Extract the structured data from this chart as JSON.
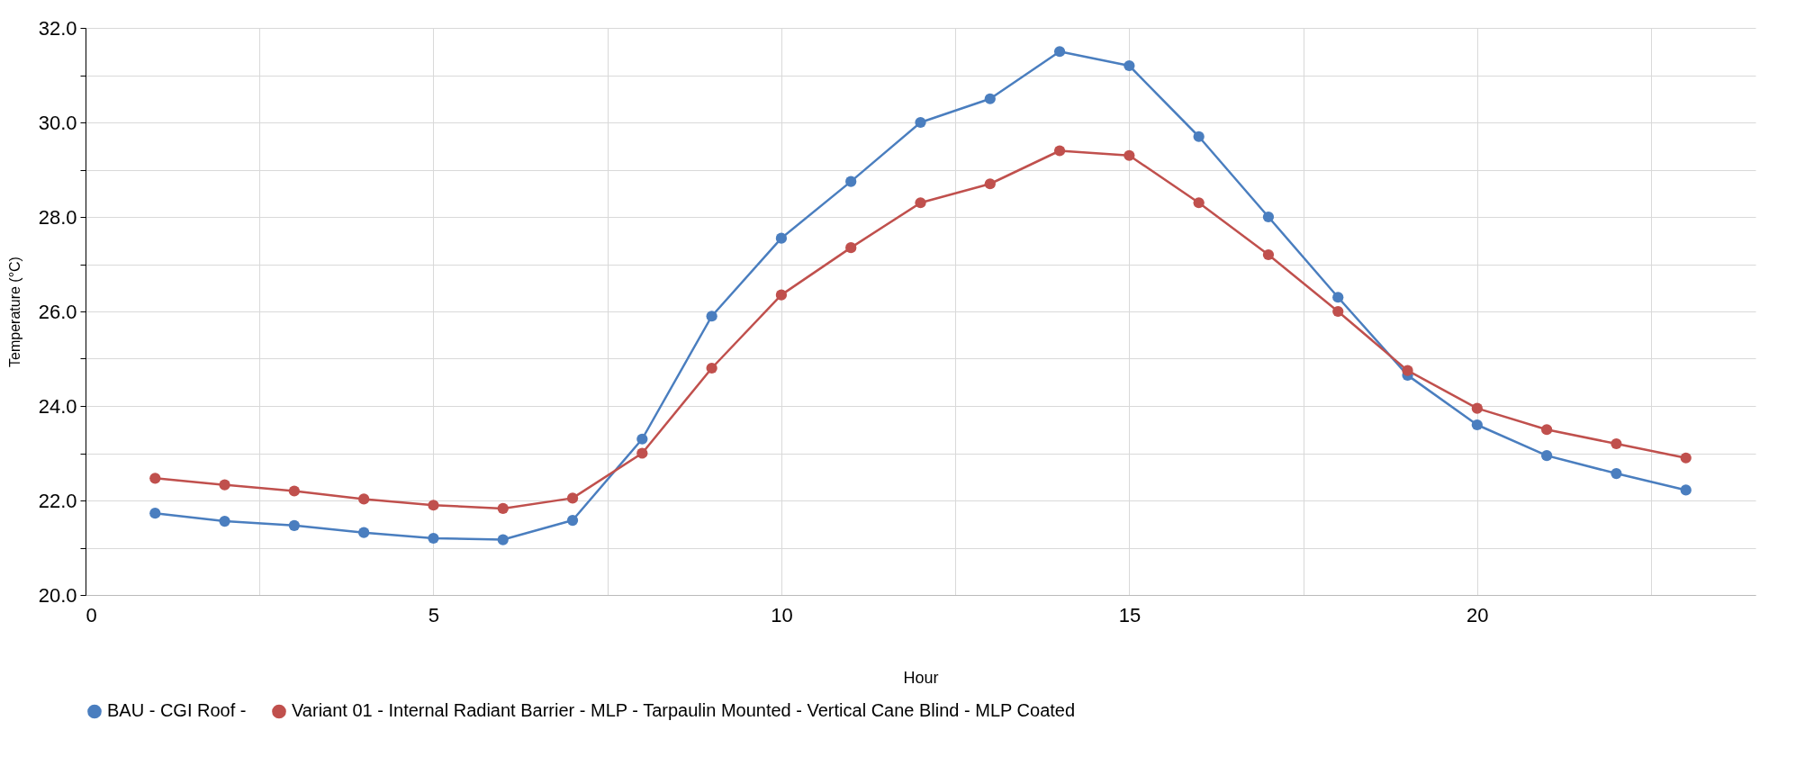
{
  "chart_data": {
    "type": "line",
    "xlabel": "Hour",
    "ylabel": "Temperature (°C)",
    "x": [
      1,
      2,
      3,
      4,
      5,
      6,
      7,
      8,
      9,
      10,
      11,
      12,
      13,
      14,
      15,
      16,
      17,
      18,
      19,
      20,
      21,
      22,
      23
    ],
    "series": [
      {
        "name": "BAU - CGI Roof -",
        "color": "#4a7ebf",
        "values": [
          21.73,
          21.56,
          21.47,
          21.32,
          21.2,
          21.17,
          21.58,
          23.3,
          25.9,
          27.55,
          28.75,
          30.0,
          30.5,
          31.5,
          31.2,
          29.7,
          28.0,
          26.3,
          24.65,
          23.6,
          22.95,
          22.57,
          22.22
        ]
      },
      {
        "name": "Variant 01 - Internal Radiant Barrier - MLP - Tarpaulin Mounted - Vertical Cane Blind - MLP Coated",
        "color": "#c0504d",
        "values": [
          22.47,
          22.33,
          22.2,
          22.03,
          21.9,
          21.83,
          22.05,
          23.0,
          24.8,
          26.35,
          27.35,
          28.3,
          28.7,
          29.4,
          29.3,
          28.3,
          27.2,
          26.0,
          24.75,
          23.95,
          23.5,
          23.2,
          22.9
        ]
      }
    ],
    "xlim": [
      0,
      24
    ],
    "xticks": [
      0,
      {
        "value": 2.5,
        "label": null
      },
      5,
      {
        "value": 7.5,
        "label": null
      },
      10,
      {
        "value": 12.5,
        "label": null
      },
      15,
      {
        "value": 17.5,
        "label": null
      },
      20,
      {
        "value": 22.5,
        "label": null
      }
    ],
    "ylim": [
      20,
      32
    ],
    "yticks": [
      {
        "value": 20,
        "label": "20.0"
      },
      {
        "value": 21,
        "label": null
      },
      {
        "value": 22,
        "label": "22.0"
      },
      {
        "value": 23,
        "label": null
      },
      {
        "value": 24,
        "label": "24.0"
      },
      {
        "value": 25,
        "label": null
      },
      {
        "value": 26,
        "label": "26.0"
      },
      {
        "value": 27,
        "label": null
      },
      {
        "value": 28,
        "label": "28.0"
      },
      {
        "value": 29,
        "label": null
      },
      {
        "value": 30,
        "label": "30.0"
      },
      {
        "value": 31,
        "label": null
      },
      {
        "value": 32,
        "label": "32.0"
      }
    ],
    "grid": true,
    "legend": "bottom left",
    "marker": "circle",
    "line_style": "solid"
  }
}
